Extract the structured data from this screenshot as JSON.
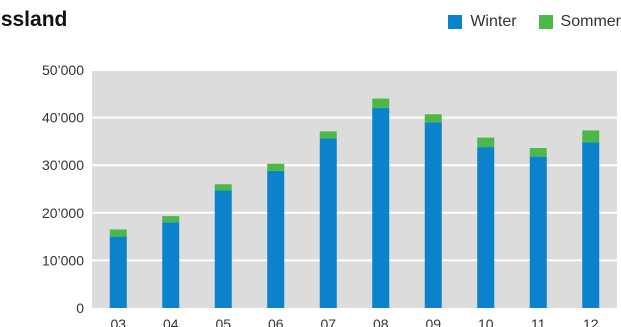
{
  "chart_data": {
    "type": "bar",
    "stacked": true,
    "title": "ussland",
    "categories": [
      "03",
      "04",
      "05",
      "06",
      "07",
      "08",
      "09",
      "10",
      "11",
      "12"
    ],
    "series": [
      {
        "name": "Winter",
        "color": "#0a82cc",
        "values": [
          15000,
          18000,
          24700,
          28800,
          35600,
          42000,
          39000,
          33800,
          31800,
          34800
        ]
      },
      {
        "name": "Sommer",
        "color": "#4cb848",
        "values": [
          1500,
          1300,
          1300,
          1500,
          1500,
          2000,
          1700,
          2000,
          1800,
          2500
        ]
      }
    ],
    "ylim": [
      0,
      50000
    ],
    "yticks": [
      0,
      10000,
      20000,
      30000,
      40000,
      50000
    ],
    "ytick_labels": [
      "0",
      "10’000",
      "20’000",
      "30’000",
      "40’000",
      "50’000"
    ],
    "grid": true,
    "legend_position": "top-right",
    "plot_background": "#dcdcdc"
  }
}
